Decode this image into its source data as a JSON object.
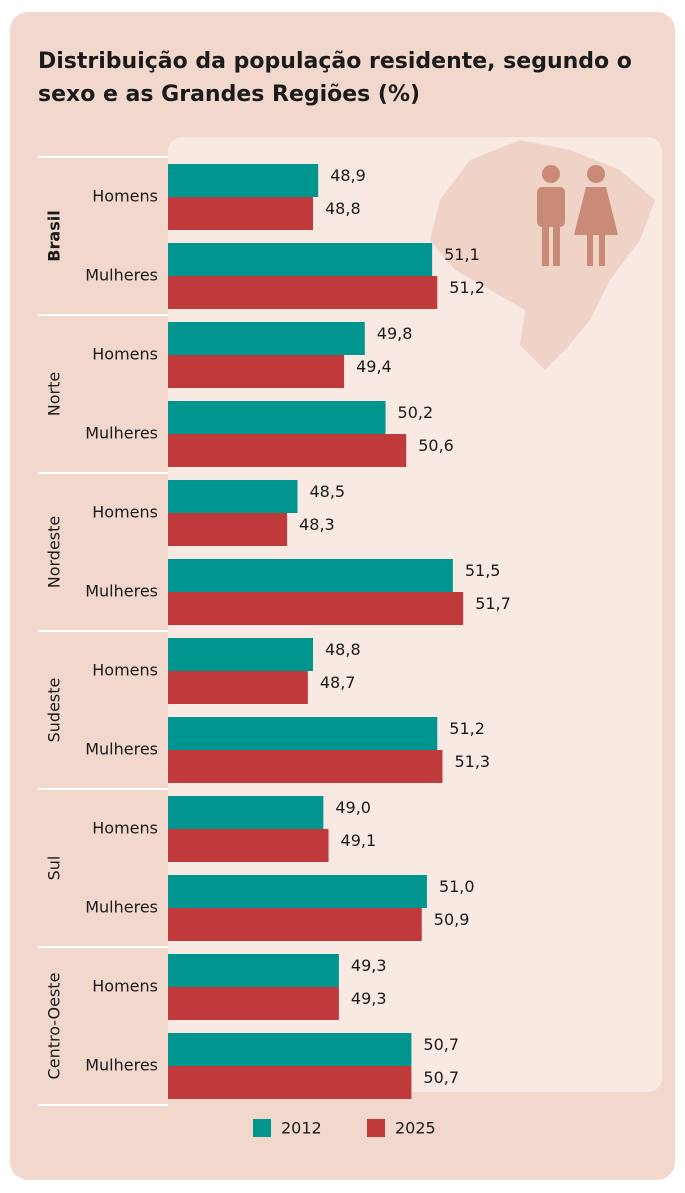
{
  "chart_data": {
    "type": "bar",
    "orientation": "horizontal",
    "title": "Distribuição da população residente, segundo o sexo e as Grandes Regiões (%)",
    "regions": [
      "Brasil",
      "Norte",
      "Nordeste",
      "Sudeste",
      "Sul",
      "Centro-Oeste"
    ],
    "categories": [
      "Homens",
      "Mulheres",
      "Homens",
      "Mulheres",
      "Homens",
      "Mulheres",
      "Homens",
      "Mulheres",
      "Homens",
      "Mulheres",
      "Homens",
      "Mulheres"
    ],
    "series": [
      {
        "name": "2012",
        "color": "#00968f",
        "values": [
          48.9,
          51.1,
          49.8,
          50.2,
          48.5,
          51.5,
          48.8,
          51.2,
          49.0,
          51.0,
          49.3,
          50.7
        ],
        "value_labels": [
          "48,9",
          "51,1",
          "49,8",
          "50,2",
          "48,5",
          "51,5",
          "48,8",
          "51,2",
          "49,0",
          "51,0",
          "49,3",
          "50,7"
        ]
      },
      {
        "name": "2025",
        "color": "#c0393b",
        "values": [
          48.8,
          51.2,
          49.4,
          50.6,
          48.3,
          51.7,
          48.7,
          51.3,
          49.1,
          50.9,
          49.3,
          50.7
        ],
        "value_labels": [
          "48,8",
          "51,2",
          "49,4",
          "50,6",
          "48,3",
          "51,7",
          "48,7",
          "51,3",
          "49,1",
          "50,9",
          "49,3",
          "50,7"
        ]
      }
    ],
    "xlim": [
      46,
      55.5
    ],
    "legend": "bottom"
  }
}
